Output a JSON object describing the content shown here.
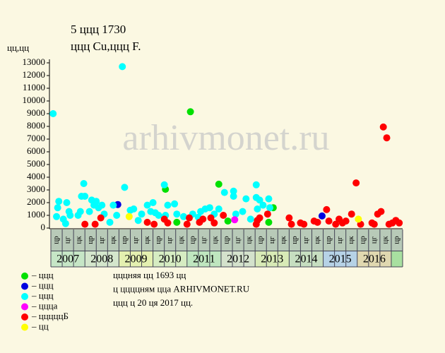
{
  "chart_data": {
    "type": "scatter",
    "title": "5 ццц 1730",
    "subtitle": "ццц Cu,ццц F.",
    "y_label": "цц,цц",
    "watermark": "arhivmonet.ru",
    "xlim": [
      0,
      31
    ],
    "ylim": [
      0,
      13000
    ],
    "yticks": [
      0,
      1000,
      2000,
      3000,
      4000,
      5000,
      6000,
      7000,
      8000,
      9000,
      10000,
      11000,
      12000,
      13000
    ],
    "sub_labels": [
      "цр",
      "цг",
      "цк",
      "цр",
      "цг",
      "цк",
      "цр",
      "цг",
      "цк",
      "цр",
      "цг",
      "цк",
      "цр",
      "цг",
      "цк",
      "цр",
      "цг",
      "цк",
      "цр",
      "цг",
      "цк",
      "цр",
      "цг",
      "цк",
      "цр",
      "цг",
      "цк",
      "цр",
      "цг",
      "цк",
      "цр"
    ],
    "years": [
      {
        "label": "2007",
        "color": "#c6e6c6"
      },
      {
        "label": "2008",
        "color": "#d4e6cc"
      },
      {
        "label": "2009",
        "color": "#e4f0b0"
      },
      {
        "label": "2010",
        "color": "#d6ecc2"
      },
      {
        "label": "2011",
        "color": "#bfe6bf"
      },
      {
        "label": "2012",
        "color": "#d4e2cc"
      },
      {
        "label": "2013",
        "color": "#d8eab6"
      },
      {
        "label": "2014",
        "color": "#c6dec0"
      },
      {
        "label": "2015",
        "color": "#b6d2e6"
      },
      {
        "label": "2016",
        "color": "#e0d8b0"
      }
    ],
    "notes": [
      "цццняя цц 1693 цц",
      "ц ццццням цца ARHIVMONET.RU",
      "ццц ц 20 ця 2017 цц."
    ],
    "series": [
      {
        "name": "– ццц",
        "color": "#00e000",
        "x": [
          12.3,
          10.1,
          14.8,
          15.6,
          19.2,
          19.6,
          11.1
        ],
        "values": [
          9150,
          3050,
          3450,
          550,
          450,
          1600,
          450
        ]
      },
      {
        "name": "– ццц",
        "color": "#0000e0",
        "x": [
          5.9,
          23.9
        ],
        "values": [
          1850,
          950
        ]
      },
      {
        "name": "– ццц",
        "color": "#00ffff",
        "x": [
          0.2,
          0.5,
          0.7,
          0.6,
          1.1,
          1.3,
          1.4,
          1.6,
          1.7,
          2.4,
          2.6,
          2.7,
          2.9,
          3.0,
          3.4,
          3.6,
          3.8,
          4.0,
          4.2,
          4.5,
          4.7,
          5.2,
          5.5,
          5.8,
          6.3,
          6.5,
          7.0,
          7.3,
          7.7,
          8.0,
          8.5,
          8.8,
          9.0,
          9.2,
          9.5,
          10.0,
          10.1,
          10.3,
          10.9,
          11.1,
          11.7,
          12.5,
          13.0,
          13.2,
          13.6,
          14.0,
          14.4,
          14.8,
          15.3,
          16.1,
          16.1,
          16.3,
          16.9,
          17.2,
          17.6,
          18.1,
          18.1,
          18.2,
          18.4,
          18.7,
          19.2,
          19.3
        ],
        "values": [
          9000,
          900,
          2100,
          1600,
          700,
          350,
          2000,
          1300,
          1000,
          1000,
          1300,
          2500,
          3500,
          2500,
          1300,
          2200,
          1800,
          2100,
          1600,
          1800,
          1100,
          450,
          1800,
          1000,
          12700,
          3200,
          1400,
          1500,
          600,
          1100,
          1800,
          1300,
          2000,
          1200,
          1000,
          3400,
          1000,
          1800,
          1900,
          1100,
          900,
          1100,
          850,
          1300,
          1500,
          1600,
          1100,
          1500,
          2800,
          2900,
          2500,
          1100,
          1300,
          2300,
          700,
          2400,
          3400,
          1500,
          2200,
          1800,
          2300,
          1600
        ]
      },
      {
        "name": "– ццца",
        "color": "#ff00ff",
        "x": [
          16.2
        ],
        "values": [
          650
        ]
      },
      {
        "name": "– цццццБ",
        "color": "#ff0000",
        "x": [
          3.0,
          3.9,
          4.4,
          8.5,
          9.1,
          10.0,
          10.3,
          12.0,
          12.2,
          13.1,
          13.4,
          14.1,
          14.4,
          15.2,
          18.1,
          18.2,
          18.4,
          19.1,
          21.0,
          21.2,
          22.0,
          22.3,
          23.2,
          23.5,
          24.3,
          24.5,
          25.1,
          25.4,
          25.7,
          26.0,
          26.5,
          26.9,
          27.3,
          28.3,
          28.5,
          28.8,
          29.1,
          29.3,
          29.6,
          29.8,
          30.1,
          30.4,
          30.7
        ],
        "values": [
          300,
          300,
          800,
          450,
          300,
          700,
          400,
          300,
          800,
          450,
          700,
          800,
          400,
          1000,
          300,
          600,
          800,
          1100,
          800,
          300,
          400,
          300,
          550,
          450,
          1450,
          550,
          300,
          700,
          400,
          550,
          1100,
          3550,
          300,
          400,
          300,
          1100,
          1300,
          7950,
          7100,
          300,
          400,
          600,
          400
        ]
      },
      {
        "name": "– цц",
        "color": "#ffff00",
        "x": [
          6.9,
          27.1
        ],
        "values": [
          900,
          700
        ]
      }
    ]
  }
}
